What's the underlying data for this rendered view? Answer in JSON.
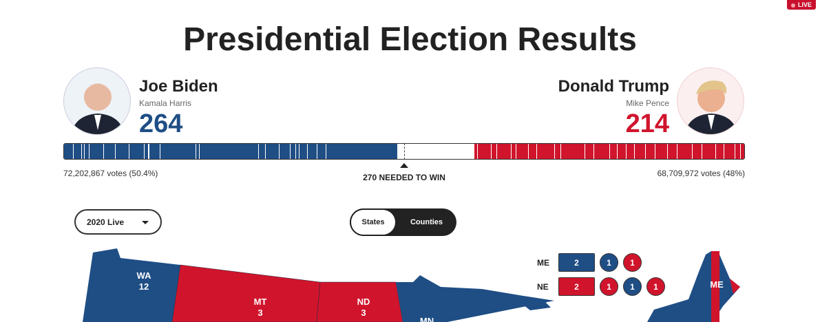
{
  "live_badge": "LIVE",
  "title": "Presidential Election Results",
  "dem": {
    "name": "Joe Biden",
    "vp": "Kamala Harris",
    "ev": "264",
    "votes": "72,202,867 votes (50.4%)",
    "color": "#1f4e85"
  },
  "rep": {
    "name": "Donald Trump",
    "vp": "Mike Pence",
    "ev": "214",
    "votes": "68,709,972 votes (48%)",
    "color": "#d0142c"
  },
  "needed": "270 NEEDED TO WIN",
  "year_select": "2020 Live",
  "toggle": {
    "states": "States",
    "counties": "Counties",
    "active": "States"
  },
  "splits": [
    {
      "state": "ME",
      "at_large": "2",
      "districts": [
        "1",
        "1"
      ]
    },
    {
      "state": "NE",
      "at_large": "2",
      "districts": [
        "1",
        "1",
        "1"
      ]
    }
  ],
  "map_labels": {
    "WA": [
      "WA",
      "12"
    ],
    "MT": [
      "MT",
      "3"
    ],
    "ND": [
      "ND",
      "3"
    ],
    "MN": [
      "MN"
    ],
    "ME": [
      "ME"
    ]
  }
}
